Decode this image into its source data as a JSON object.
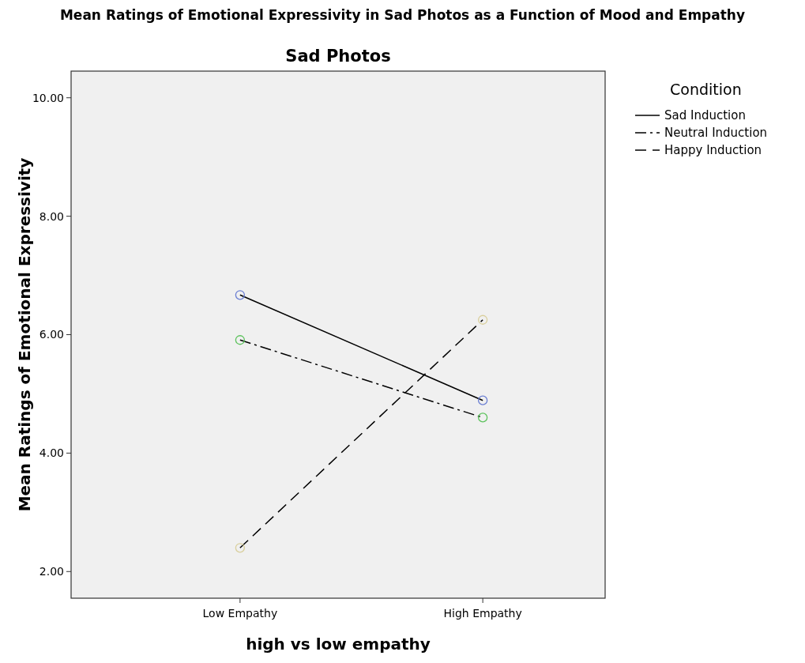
{
  "chart_data": {
    "type": "line",
    "title": "Mean Ratings of Emotional Expressivity in Sad Photos as a Function of Mood and Empathy",
    "subtitle": "Sad Photos",
    "xlabel": "high vs low empathy",
    "ylabel": "Mean Ratings of Emotional Expressivity",
    "legend_title": "Condition",
    "legend": "right",
    "marker": "circle",
    "grid": false,
    "categories": [
      "Low Empathy",
      "High Empathy"
    ],
    "ylim": [
      1.55,
      10.45
    ],
    "yticks": [
      {
        "value": 2,
        "label": "2.00"
      },
      {
        "value": 4,
        "label": "4.00"
      },
      {
        "value": 6,
        "label": "6.00"
      },
      {
        "value": 8,
        "label": "8.00"
      },
      {
        "value": 10,
        "label": "10.00"
      }
    ],
    "series": [
      {
        "name": "Sad Induction",
        "color": "#000000",
        "colors": [
          "#6b7fd3",
          "#6b7fd3"
        ],
        "line_style": "solid",
        "values": [
          6.67,
          4.89
        ]
      },
      {
        "name": "Neutral Induction",
        "color": "#000000",
        "colors": [
          "#5cc25c",
          "#5cc25c"
        ],
        "line_style": "dashdot",
        "values": [
          5.91,
          4.6
        ]
      },
      {
        "name": "Happy Induction",
        "color": "#000000",
        "colors": [
          "#d9cf9c",
          "#d9cf9c"
        ],
        "line_style": "dashed",
        "values": [
          2.4,
          6.25
        ]
      }
    ]
  }
}
